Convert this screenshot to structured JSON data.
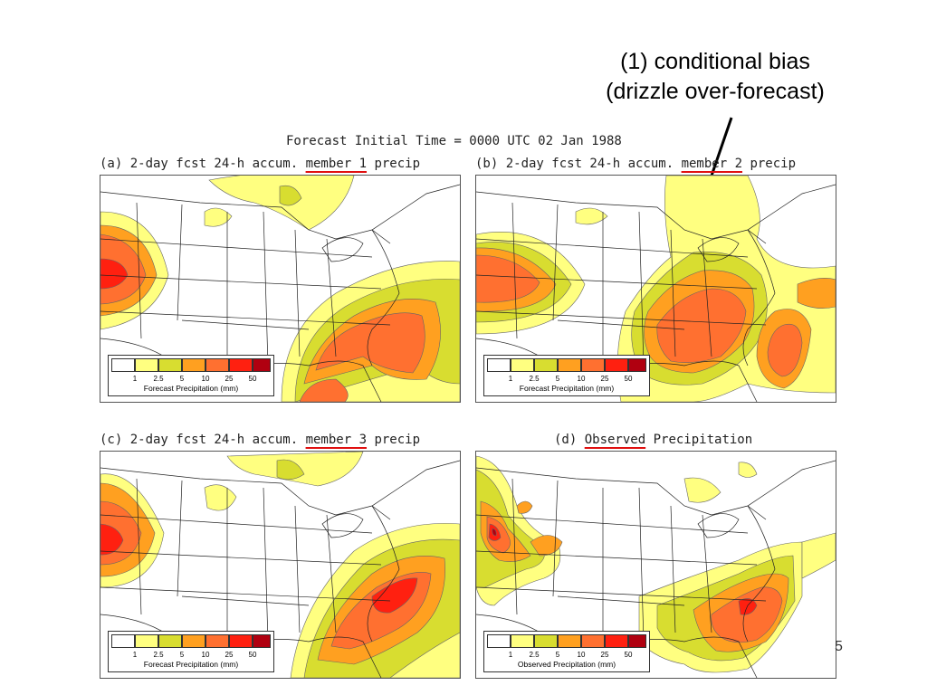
{
  "annotation": {
    "line1": "(1)  conditional bias",
    "line2": "(drizzle over-forecast)"
  },
  "figure_title": "Forecast Initial Time = 0000 UTC 02 Jan 1988",
  "panels": [
    {
      "prefix": "(a) 2-day fcst 24-h accum. ",
      "highlight": "member 1",
      "suffix": " precip",
      "legend_caption": "Forecast Precipitation (mm)"
    },
    {
      "prefix": "(b) 2-day fcst 24-h accum. ",
      "highlight": "member 2",
      "suffix": " precip",
      "legend_caption": "Forecast Precipitation (mm)"
    },
    {
      "prefix": "(c) 2-day fcst 24-h accum. ",
      "highlight": "member 3",
      "suffix": " precip",
      "legend_caption": "Forecast Precipitation (mm)"
    },
    {
      "prefix": "(d) ",
      "highlight": "Observed",
      "suffix": " Precipitation",
      "legend_caption": "Observed Precipitation (mm)"
    }
  ],
  "legend": {
    "ticks": [
      "1",
      "2.5",
      "5",
      "10",
      "25",
      "50"
    ],
    "colors": [
      "#ffffff",
      "#ffff80",
      "#d8dd30",
      "#ffa020",
      "#ff7030",
      "#ff2010",
      "#b00010"
    ]
  },
  "page_number": "5"
}
